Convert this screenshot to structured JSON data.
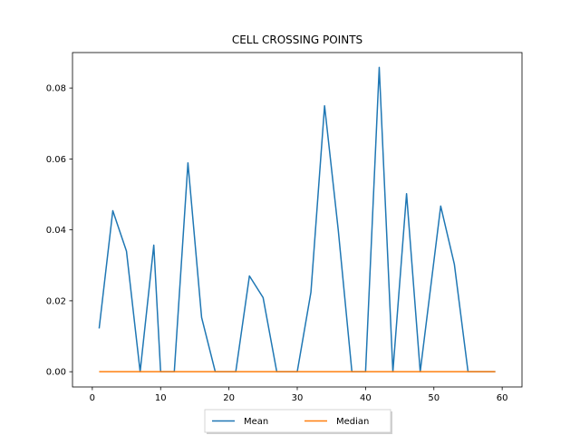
{
  "chart_data": {
    "type": "line",
    "title": "CELL CROSSING POINTS",
    "xlabel": "",
    "ylabel": "",
    "xlim": [
      -2.9,
      62.9
    ],
    "ylim": [
      -0.0043,
      0.09
    ],
    "x_ticks": [
      0,
      10,
      20,
      30,
      40,
      50,
      60
    ],
    "y_ticks": [
      0.0,
      0.02,
      0.04,
      0.06,
      0.08
    ],
    "y_tick_labels": [
      "0.00",
      "0.02",
      "0.04",
      "0.06",
      "0.08"
    ],
    "grid": false,
    "legend_position": "bottom-center",
    "series": [
      {
        "name": "Mean",
        "color": "#1f77b4",
        "x": [
          1,
          3,
          5,
          7,
          9,
          10,
          12,
          14,
          16,
          18,
          21,
          23,
          25,
          27,
          30,
          32,
          34,
          36,
          38,
          40,
          42,
          44,
          46,
          48,
          51,
          53,
          55,
          57,
          59
        ],
        "y": [
          0.0122,
          0.0454,
          0.034,
          0.0,
          0.0357,
          0.0,
          0.0,
          0.0589,
          0.0153,
          0.0,
          0.0,
          0.027,
          0.0209,
          0.0,
          0.0,
          0.0224,
          0.075,
          0.04,
          0.0,
          0.0,
          0.0858,
          0.0,
          0.0502,
          0.0,
          0.0467,
          0.0303,
          0.0,
          0.0,
          0.0
        ]
      },
      {
        "name": "Median",
        "color": "#ff7f0e",
        "x": [
          1,
          59
        ],
        "y": [
          0.0,
          0.0
        ]
      }
    ]
  }
}
